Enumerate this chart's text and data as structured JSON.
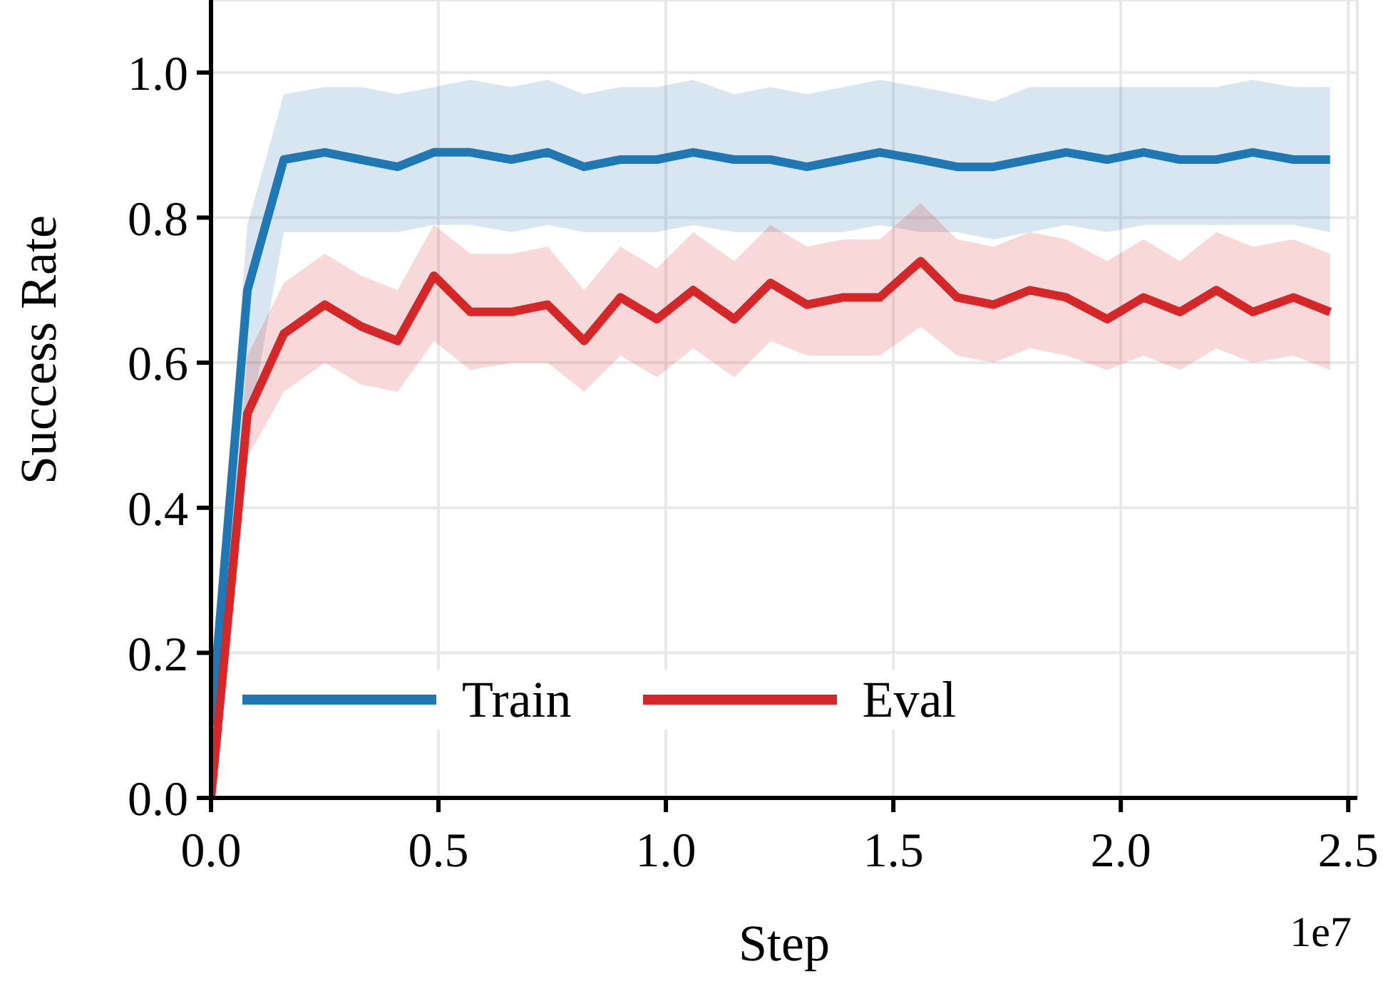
{
  "chart_data": {
    "type": "line",
    "xlabel": "Step",
    "ylabel": "Success Rate",
    "annotations": [
      "1e7"
    ],
    "x": [
      0,
      0.08,
      0.16,
      0.25,
      0.33,
      0.41,
      0.49,
      0.57,
      0.66,
      0.74,
      0.82,
      0.9,
      0.98,
      1.06,
      1.15,
      1.23,
      1.31,
      1.39,
      1.47,
      1.56,
      1.64,
      1.72,
      1.8,
      1.88,
      1.97,
      2.05,
      2.13,
      2.21,
      2.29,
      2.38,
      2.46
    ],
    "series": [
      {
        "name": "Train",
        "color": "#1f77b4",
        "values": [
          0.1,
          0.7,
          0.88,
          0.89,
          0.88,
          0.87,
          0.89,
          0.89,
          0.88,
          0.89,
          0.87,
          0.88,
          0.88,
          0.89,
          0.88,
          0.88,
          0.87,
          0.88,
          0.89,
          0.88,
          0.87,
          0.87,
          0.88,
          0.89,
          0.88,
          0.89,
          0.88,
          0.88,
          0.89,
          0.88,
          0.88
        ],
        "lower": [
          0.05,
          0.5,
          0.78,
          0.78,
          0.78,
          0.78,
          0.79,
          0.79,
          0.78,
          0.79,
          0.78,
          0.78,
          0.78,
          0.79,
          0.78,
          0.78,
          0.78,
          0.78,
          0.79,
          0.78,
          0.78,
          0.77,
          0.78,
          0.79,
          0.78,
          0.79,
          0.79,
          0.79,
          0.79,
          0.79,
          0.78
        ],
        "upper": [
          0.15,
          0.79,
          0.97,
          0.98,
          0.98,
          0.97,
          0.98,
          0.99,
          0.98,
          0.99,
          0.97,
          0.98,
          0.98,
          0.99,
          0.97,
          0.98,
          0.97,
          0.98,
          0.99,
          0.98,
          0.97,
          0.96,
          0.98,
          0.98,
          0.98,
          0.98,
          0.98,
          0.98,
          0.99,
          0.98,
          0.98
        ]
      },
      {
        "name": "Eval",
        "color": "#d62728",
        "values": [
          0,
          0.53,
          0.64,
          0.68,
          0.65,
          0.63,
          0.72,
          0.67,
          0.67,
          0.68,
          0.63,
          0.69,
          0.66,
          0.7,
          0.66,
          0.71,
          0.68,
          0.69,
          0.69,
          0.74,
          0.69,
          0.68,
          0.7,
          0.69,
          0.66,
          0.69,
          0.67,
          0.7,
          0.67,
          0.69,
          0.67
        ],
        "lower": [
          0,
          0.47,
          0.56,
          0.6,
          0.57,
          0.56,
          0.63,
          0.59,
          0.6,
          0.6,
          0.56,
          0.61,
          0.58,
          0.62,
          0.58,
          0.63,
          0.61,
          0.61,
          0.61,
          0.65,
          0.61,
          0.6,
          0.62,
          0.61,
          0.59,
          0.61,
          0.59,
          0.62,
          0.6,
          0.61,
          0.59
        ],
        "upper": [
          0,
          0.61,
          0.71,
          0.75,
          0.72,
          0.7,
          0.79,
          0.75,
          0.75,
          0.76,
          0.7,
          0.76,
          0.73,
          0.78,
          0.74,
          0.79,
          0.76,
          0.77,
          0.77,
          0.82,
          0.77,
          0.76,
          0.78,
          0.77,
          0.74,
          0.77,
          0.74,
          0.78,
          0.76,
          0.77,
          0.75
        ]
      }
    ],
    "xlim": [
      0,
      2.52
    ],
    "xticks": [
      {
        "value": 0,
        "label": "0.0"
      },
      0.5,
      {
        "value": 1,
        "label": "1.0"
      },
      1.5,
      {
        "value": 2,
        "label": "2.0"
      },
      2.5
    ],
    "ylim": [
      0,
      1.1
    ],
    "yticks": [
      {
        "value": 0,
        "label": "0.0"
      },
      0.2,
      0.4,
      0.6,
      0.8,
      {
        "value": 1,
        "label": "1.0"
      }
    ],
    "grid": true,
    "legend": "bottom",
    "marker": "none",
    "line_style": "solid"
  }
}
